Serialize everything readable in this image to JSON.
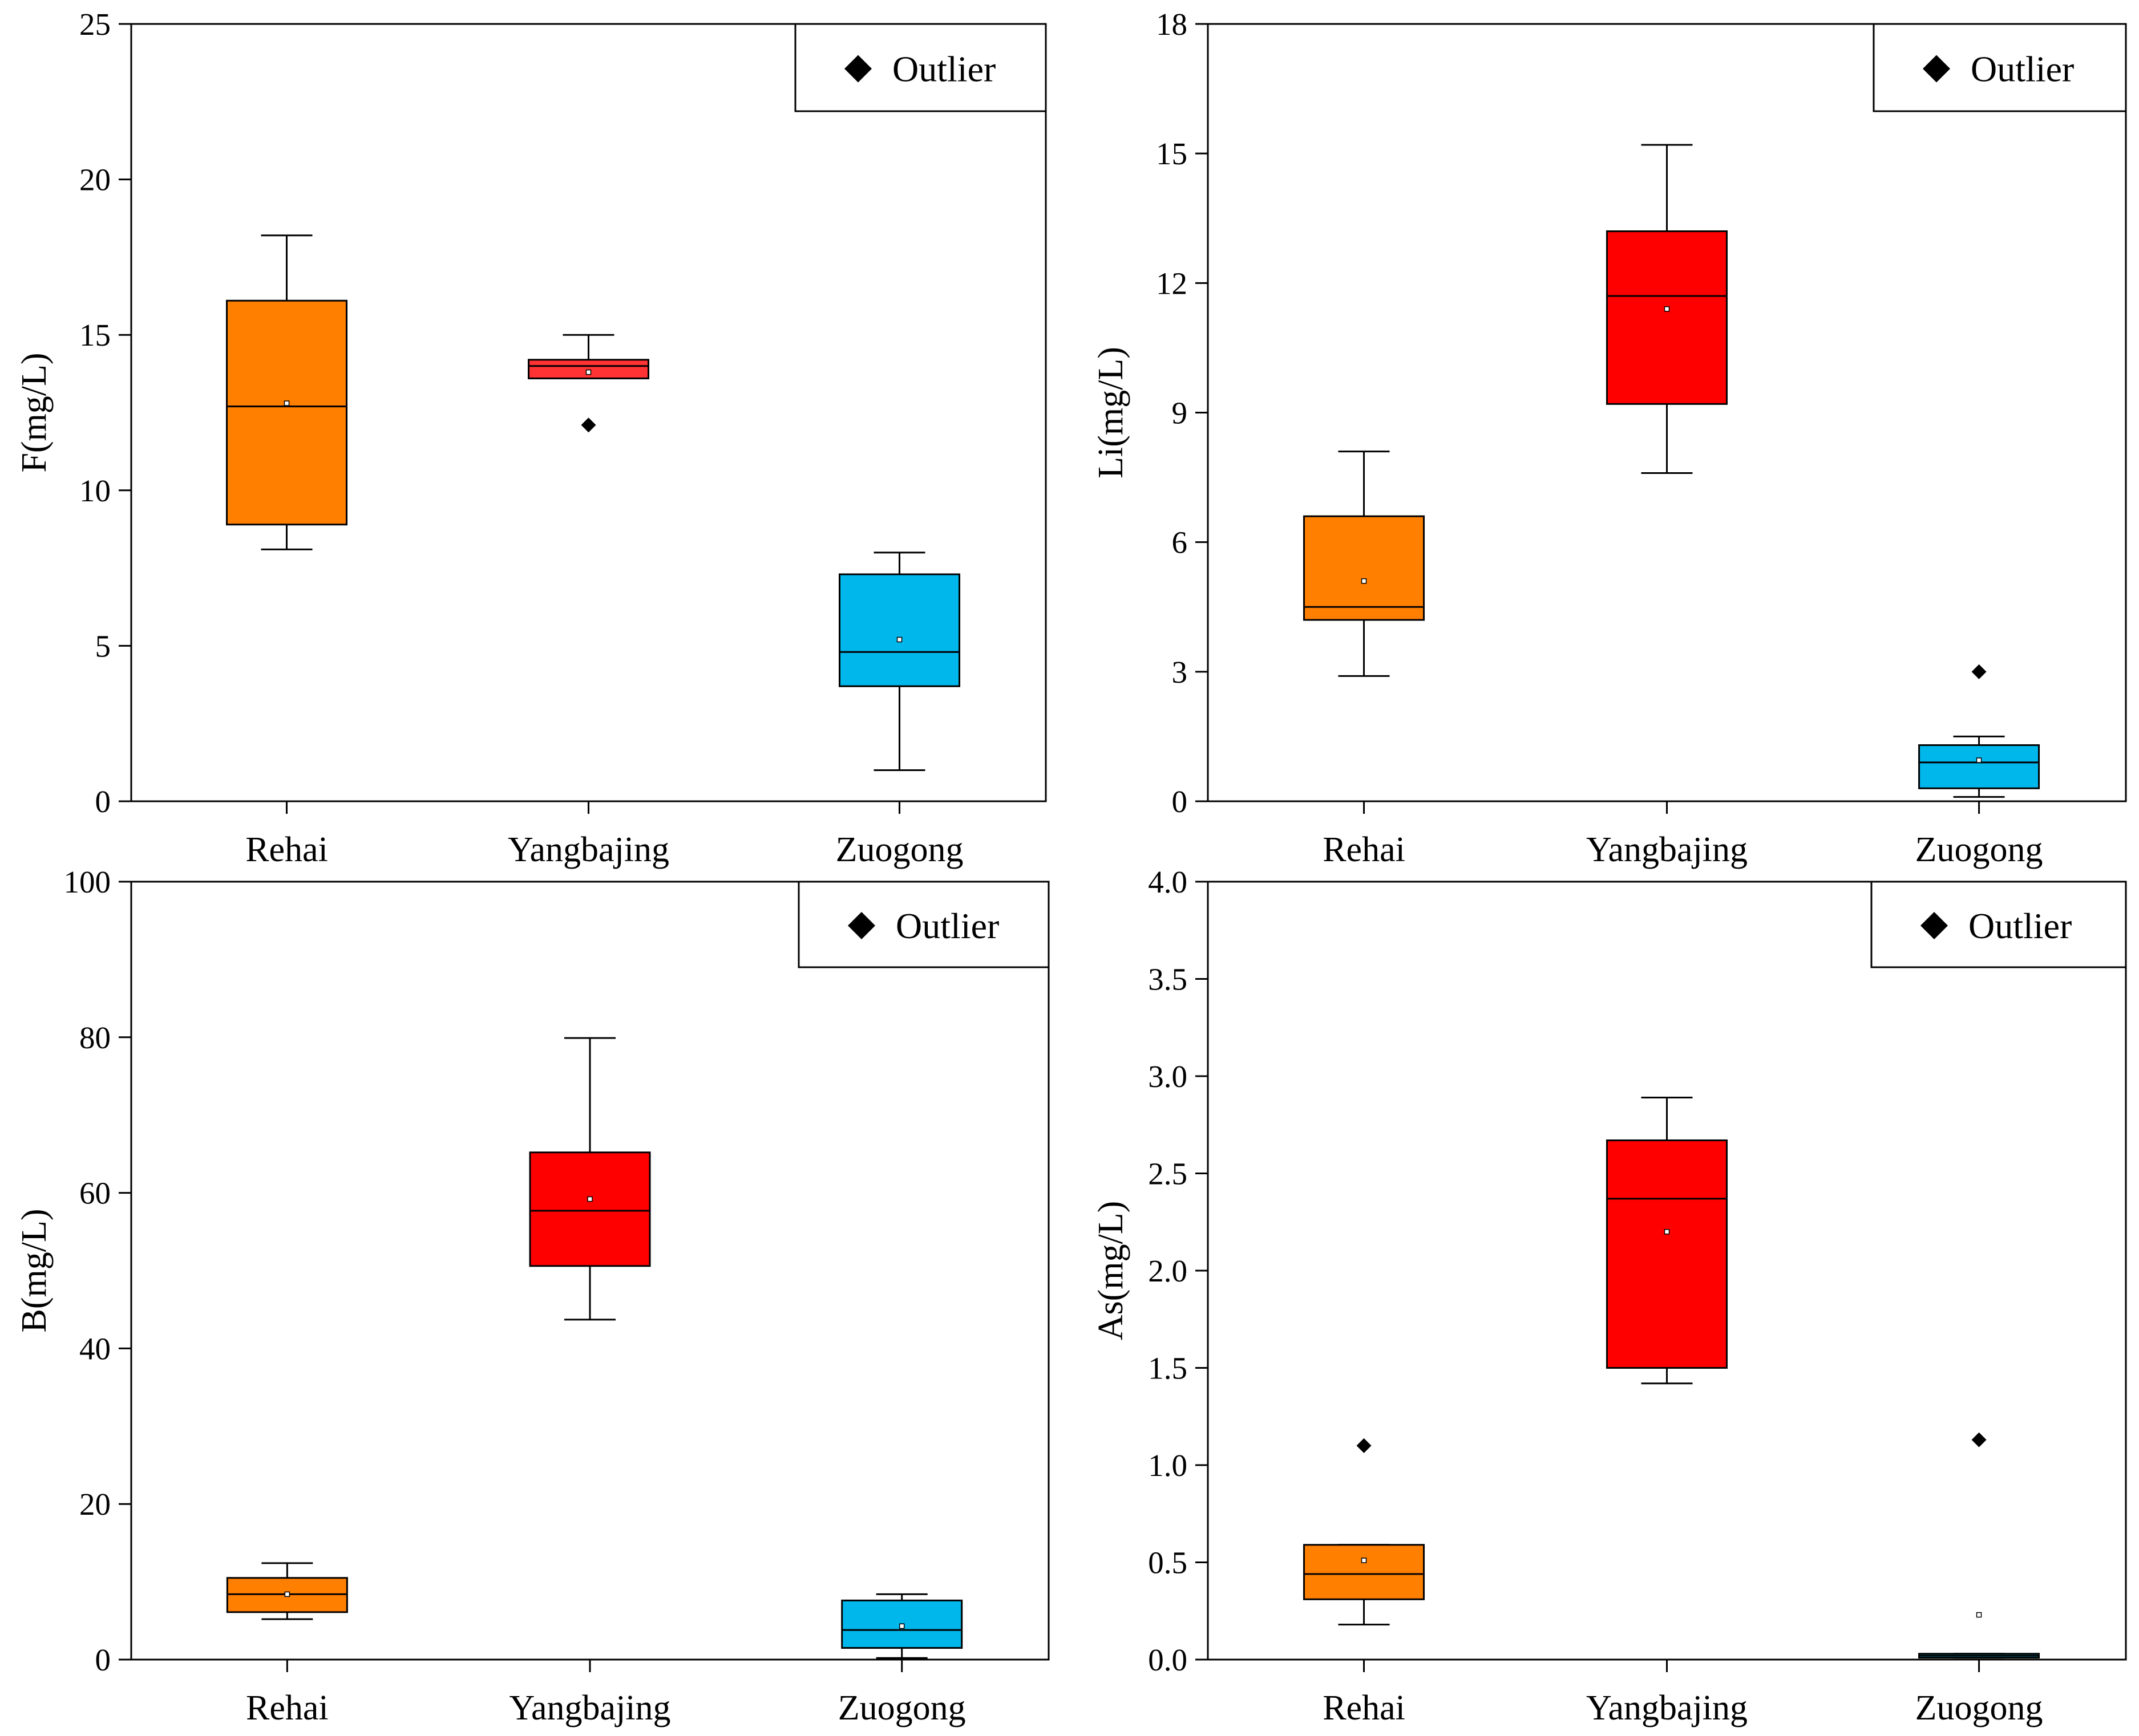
{
  "legend_label": "Outlier",
  "chart_data": [
    {
      "type": "box",
      "ylabel": "F(mg/L)",
      "ylim": [
        0,
        25
      ],
      "yticks": [
        0,
        5,
        10,
        15,
        20,
        25
      ],
      "categories": [
        "Rehai",
        "Yangbajing",
        "Zuogong"
      ],
      "boxes": [
        {
          "name": "Rehai",
          "color": "#FF7F00",
          "whisker_low": 8.1,
          "q1": 8.9,
          "median": 12.7,
          "q3": 16.1,
          "whisker_high": 18.2,
          "mean": 12.8,
          "outliers": []
        },
        {
          "name": "Yangbajing",
          "color": "#FF3333",
          "whisker_low": 13.6,
          "q1": 13.6,
          "median": 14.0,
          "q3": 14.2,
          "whisker_high": 15.0,
          "mean": 13.8,
          "outliers": [
            12.1
          ]
        },
        {
          "name": "Zuogong",
          "color": "#00B7EB",
          "whisker_low": 1.0,
          "q1": 3.7,
          "median": 4.8,
          "q3": 7.3,
          "whisker_high": 8.0,
          "mean": 5.2,
          "outliers": []
        }
      ],
      "legend": "Outlier"
    },
    {
      "type": "box",
      "ylabel": "Li(mg/L)",
      "ylim": [
        0,
        18
      ],
      "yticks": [
        0,
        3,
        6,
        9,
        12,
        15,
        18
      ],
      "categories": [
        "Rehai",
        "Yangbajing",
        "Zuogong"
      ],
      "boxes": [
        {
          "name": "Rehai",
          "color": "#FF7F00",
          "whisker_low": 2.9,
          "q1": 4.2,
          "median": 4.5,
          "q3": 6.6,
          "whisker_high": 8.1,
          "mean": 5.1,
          "outliers": []
        },
        {
          "name": "Yangbajing",
          "color": "#FF0000",
          "whisker_low": 7.6,
          "q1": 9.2,
          "median": 11.7,
          "q3": 13.2,
          "whisker_high": 15.2,
          "mean": 11.4,
          "outliers": []
        },
        {
          "name": "Zuogong",
          "color": "#00B7EB",
          "whisker_low": 0.1,
          "q1": 0.3,
          "median": 0.9,
          "q3": 1.3,
          "whisker_high": 1.5,
          "mean": 0.95,
          "outliers": [
            3.0
          ]
        }
      ],
      "legend": "Outlier"
    },
    {
      "type": "box",
      "ylabel": "B(mg/L)",
      "ylim": [
        0,
        100
      ],
      "yticks": [
        0,
        20,
        40,
        60,
        80,
        100
      ],
      "categories": [
        "Rehai",
        "Yangbajing",
        "Zuogong"
      ],
      "boxes": [
        {
          "name": "Rehai",
          "color": "#FF7F00",
          "whisker_low": 5.2,
          "q1": 6.1,
          "median": 8.4,
          "q3": 10.5,
          "whisker_high": 12.4,
          "mean": 8.4,
          "outliers": []
        },
        {
          "name": "Yangbajing",
          "color": "#FF0000",
          "whisker_low": 43.7,
          "q1": 50.6,
          "median": 57.7,
          "q3": 65.2,
          "whisker_high": 79.9,
          "mean": 59.2,
          "outliers": []
        },
        {
          "name": "Zuogong",
          "color": "#00B7EB",
          "whisker_low": 0.2,
          "q1": 1.5,
          "median": 3.8,
          "q3": 7.6,
          "whisker_high": 8.4,
          "mean": 4.3,
          "outliers": []
        }
      ],
      "legend": "Outlier"
    },
    {
      "type": "box",
      "ylabel": "As(mg/L)",
      "ylim": [
        0,
        4.0
      ],
      "yticks": [
        0.0,
        0.5,
        1.0,
        1.5,
        2.0,
        2.5,
        3.0,
        3.5,
        4.0
      ],
      "categories": [
        "Rehai",
        "Yangbajing",
        "Zuogong"
      ],
      "boxes": [
        {
          "name": "Rehai",
          "color": "#FF7F00",
          "whisker_low": 0.18,
          "q1": 0.31,
          "median": 0.44,
          "q3": 0.59,
          "whisker_high": 0.59,
          "mean": 0.51,
          "outliers": [
            1.1
          ]
        },
        {
          "name": "Yangbajing",
          "color": "#FF0000",
          "whisker_low": 1.42,
          "q1": 1.5,
          "median": 2.37,
          "q3": 2.67,
          "whisker_high": 2.89,
          "mean": 2.2,
          "outliers": []
        },
        {
          "name": "Zuogong",
          "color": "#00B7EB",
          "whisker_low": 0.01,
          "q1": 0.01,
          "median": 0.02,
          "q3": 0.03,
          "whisker_high": 0.03,
          "mean": 0.23,
          "outliers": [
            1.13
          ]
        }
      ],
      "legend": "Outlier"
    }
  ]
}
